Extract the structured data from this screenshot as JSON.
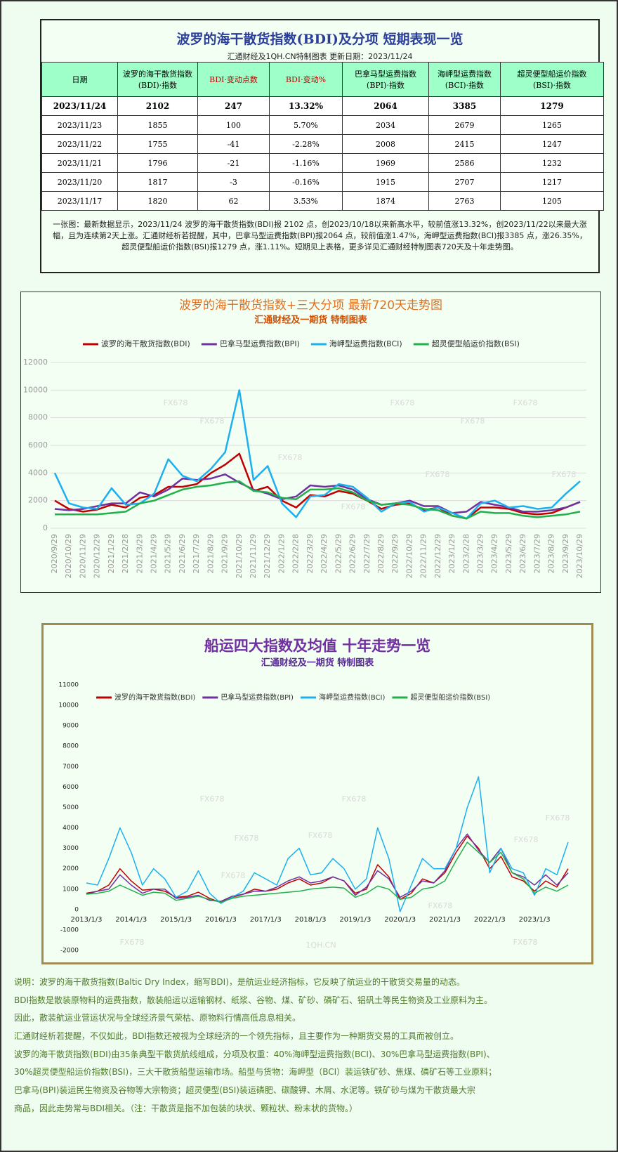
{
  "table": {
    "title": "波罗的海干散货指数(BDI)及分项 短期表现一览",
    "subtitle": "汇通财经及1QH.CN特制图表    更新日期：2023/11/24",
    "headers": [
      "日期",
      "波罗的海干散货指数\n(BDI)·指数",
      "BDI·变动点数",
      "BDI·变动%",
      "巴拿马型运费指数\n(BPI)·指数",
      "海岬型运费指数\n(BCI)·指数",
      "超灵便型船运价指数\n(BSI)·指数"
    ],
    "rows": [
      [
        "2023/11/24",
        "2102",
        "247",
        "13.32%",
        "2064",
        "3385",
        "1279"
      ],
      [
        "2023/11/23",
        "1855",
        "100",
        "5.70%",
        "2034",
        "2679",
        "1265"
      ],
      [
        "2023/11/22",
        "1755",
        "-41",
        "-2.28%",
        "2008",
        "2415",
        "1247"
      ],
      [
        "2023/11/21",
        "1796",
        "-21",
        "-1.16%",
        "1969",
        "2586",
        "1232"
      ],
      [
        "2023/11/20",
        "1817",
        "-3",
        "-0.16%",
        "1915",
        "2707",
        "1217"
      ],
      [
        "2023/11/17",
        "1820",
        "62",
        "3.53%",
        "1874",
        "2763",
        "1205"
      ]
    ],
    "note": "一张图：最新数据显示，2023/11/24 波罗的海干散货指数(BDI)报 2102 点，创2023/10/18以来新高水平，较前值涨13.32%，创2023/11/22以来最大涨幅，且为连续第2天上涨。汇通财经析若提醒，其中，巴拿马型运费指数(BPI)报2064 点，较前值涨1.47%，海岬型运费指数(BCI)报3385 点，涨26.35%，超灵便型船运价指数(BSI)报1279 点，涨1.11%。短期见上表格，更多详见汇通财经特制图表720天及十年走势图。"
  },
  "chart_data": [
    {
      "type": "line",
      "title": "波罗的海干散货指数+三大分项  最新720天走势图",
      "subtitle": "汇通财经及一期货  特制图表",
      "watermarks": [
        "FX678"
      ],
      "grid": true,
      "categories": [
        "2020/9/29",
        "2020/10/29",
        "2020/11/29",
        "2020/12/29",
        "2021/1/29",
        "2021/2/28",
        "2021/3/29",
        "2021/4/29",
        "2021/5/29",
        "2021/6/29",
        "2021/7/29",
        "2021/8/29",
        "2021/9/29",
        "2021/10/29",
        "2021/11/29",
        "2021/12/29",
        "2022/1/29",
        "2022/2/28",
        "2022/3/29",
        "2022/4/29",
        "2022/5/29",
        "2022/6/29",
        "2022/7/29",
        "2022/8/29",
        "2022/9/29",
        "2022/10/29",
        "2022/11/29",
        "2022/12/29",
        "2023/1/29",
        "2023/2/28",
        "2023/3/29",
        "2023/4/29",
        "2023/5/29",
        "2023/6/29",
        "2023/7/29",
        "2023/8/29",
        "2023/9/29",
        "2023/10/29"
      ],
      "ylim": [
        0,
        12000
      ],
      "yticks": [
        0,
        2000,
        4000,
        6000,
        8000,
        10000,
        12000
      ],
      "series": [
        {
          "name": "波罗的海干散货指数(BDI)",
          "color": "#c00000",
          "values": [
            2000,
            1400,
            1200,
            1350,
            1700,
            1500,
            2200,
            2400,
            3000,
            3000,
            3200,
            4000,
            4600,
            5400,
            2700,
            3000,
            2000,
            1500,
            2400,
            2300,
            2700,
            2500,
            2000,
            1400,
            1700,
            1800,
            1300,
            1500,
            900,
            700,
            1500,
            1500,
            1400,
            1100,
            1000,
            1100,
            1500,
            1900
          ]
        },
        {
          "name": "巴拿马型运费指数(BPI)",
          "color": "#7030a0",
          "values": [
            1400,
            1300,
            1400,
            1600,
            1800,
            1800,
            2600,
            2300,
            2800,
            3600,
            3500,
            3600,
            3900,
            3300,
            2800,
            2500,
            2100,
            2300,
            3100,
            3000,
            3100,
            2800,
            2100,
            1700,
            1800,
            2000,
            1600,
            1600,
            1100,
            1200,
            1900,
            1700,
            1500,
            1200,
            1200,
            1300,
            1500,
            1900
          ]
        },
        {
          "name": "海岬型运费指数(BCI)",
          "color": "#1cb0f0",
          "values": [
            4000,
            1800,
            1500,
            1400,
            2900,
            1700,
            1800,
            2500,
            5000,
            3800,
            3400,
            4300,
            5500,
            10000,
            3500,
            4500,
            1800,
            800,
            2300,
            2400,
            3200,
            3000,
            2200,
            1200,
            1800,
            1900,
            1200,
            1500,
            1100,
            700,
            1800,
            2000,
            1500,
            1600,
            1400,
            1500,
            2500,
            3400
          ]
        },
        {
          "name": "超灵便型船运价指数(BSI)",
          "color": "#22b04a",
          "values": [
            1000,
            1000,
            1000,
            1000,
            1100,
            1200,
            1800,
            2000,
            2400,
            2800,
            3000,
            3100,
            3300,
            3400,
            2700,
            2600,
            2200,
            2100,
            2800,
            2800,
            2900,
            2600,
            2000,
            1700,
            1800,
            1700,
            1400,
            1300,
            900,
            700,
            1200,
            1100,
            1100,
            900,
            800,
            900,
            1000,
            1200
          ]
        }
      ]
    },
    {
      "type": "line",
      "title": "船运四大指数及均值 十年走势一览",
      "subtitle": "汇通财经及一期货 特制图表",
      "watermarks": [
        "FX678",
        "1QH.CN"
      ],
      "grid": false,
      "categories": [
        "2013/1/3",
        null,
        null,
        null,
        "2014/1/3",
        null,
        null,
        null,
        "2015/1/3",
        null,
        null,
        null,
        "2016/1/3",
        null,
        null,
        null,
        "2017/1/3",
        null,
        null,
        null,
        "2018/1/3",
        null,
        null,
        null,
        "2019/1/3",
        null,
        null,
        null,
        "2020/1/3",
        null,
        null,
        null,
        "2021/1/3",
        null,
        null,
        null,
        "2022/1/3",
        null,
        null,
        null,
        "2023/1/3",
        null,
        null,
        null
      ],
      "ylim": [
        -2000,
        11000
      ],
      "yticks": [
        -2000,
        -1000,
        0,
        1000,
        2000,
        3000,
        4000,
        5000,
        6000,
        7000,
        8000,
        9000,
        10000,
        11000
      ],
      "series": [
        {
          "name": "波罗的海干散货指数(BDI)",
          "color": "#c00000",
          "values": [
            800,
            900,
            1200,
            2000,
            1400,
            950,
            1000,
            900,
            600,
            650,
            850,
            550,
            350,
            600,
            750,
            1000,
            900,
            1000,
            1300,
            1500,
            1200,
            1300,
            1600,
            1400,
            800,
            1000,
            2200,
            1600,
            500,
            800,
            1500,
            1300,
            1800,
            2800,
            3600,
            3000,
            2000,
            2600,
            1600,
            1400,
            900,
            1400,
            1100,
            2000
          ]
        },
        {
          "name": "巴拿马型运费指数(BPI)",
          "color": "#7030a0",
          "values": [
            750,
            900,
            1000,
            1700,
            1200,
            800,
            1000,
            1000,
            550,
            600,
            700,
            450,
            400,
            650,
            750,
            900,
            900,
            1100,
            1400,
            1600,
            1300,
            1400,
            1600,
            1400,
            700,
            1100,
            1900,
            1500,
            600,
            900,
            1400,
            1300,
            1900,
            3000,
            3700,
            2900,
            2300,
            3000,
            1800,
            1600,
            1200,
            1700,
            1200,
            1800
          ]
        },
        {
          "name": "海岬型运费指数(BCI)",
          "color": "#1cb0f0",
          "values": [
            1300,
            1200,
            2500,
            4000,
            2800,
            1200,
            2000,
            1500,
            600,
            900,
            1900,
            800,
            300,
            600,
            900,
            1800,
            1500,
            1200,
            2500,
            3000,
            1700,
            1800,
            2500,
            2000,
            1000,
            1500,
            4000,
            2500,
            -100,
            1200,
            2500,
            2000,
            2000,
            3000,
            5000,
            6500,
            1800,
            3000,
            2000,
            1800,
            700,
            2000,
            1700,
            3300
          ]
        },
        {
          "name": "超灵便型船运价指数(BSI)",
          "color": "#22b04a",
          "values": [
            750,
            800,
            900,
            1200,
            950,
            700,
            850,
            800,
            450,
            550,
            650,
            500,
            350,
            550,
            650,
            700,
            750,
            800,
            850,
            900,
            1000,
            1050,
            1100,
            1050,
            600,
            800,
            1150,
            1000,
            500,
            600,
            1000,
            1100,
            1400,
            2400,
            3300,
            2800,
            2300,
            2800,
            1800,
            1500,
            800,
            1100,
            900,
            1200
          ]
        }
      ]
    }
  ],
  "notes": [
    "说明：波罗的海干散货指数(Baltic Dry Index，缩写BDI)，是航运业经济指标，它反映了航运业的干散货交易量的动态。",
    "BDI指数是散装原物料的运费指数，散装船运以运输钢材、纸浆、谷物、煤、矿砂、磷矿石、铝矾土等民生物资及工业原料为主。",
    "因此，散装航运业营运状况与全球经济景气荣枯、原物料行情高低息息相关。",
    "汇通财经析若提醒，不仅如此，BDI指数还被视为全球经济的一个领先指标，且主要作为一种期货交易的工具而被创立。",
    "波罗的海干散货指数(BDI)由35条典型干散货航线组成，分项及权重：40%海岬型运费指数(BCI)、30%巴拿马型运费指数(BPI)、",
    "30%超灵便型船运价指数(BSI)，三大干散货船型运输市场。船型与货物：海岬型（BCI）装运铁矿砂、焦煤、磷矿石等工业原料；",
    "巴拿马(BPI)装运民生物资及谷物等大宗物资；超灵便型(BSI)装运磷肥、碳酸钾、木屑、水泥等。铁矿砂与煤为干散货最大宗",
    "商品，因此走势常与BDI相关。（注：干散货是指不加包装的块状、颗粒状、粉末状的货物。）"
  ]
}
